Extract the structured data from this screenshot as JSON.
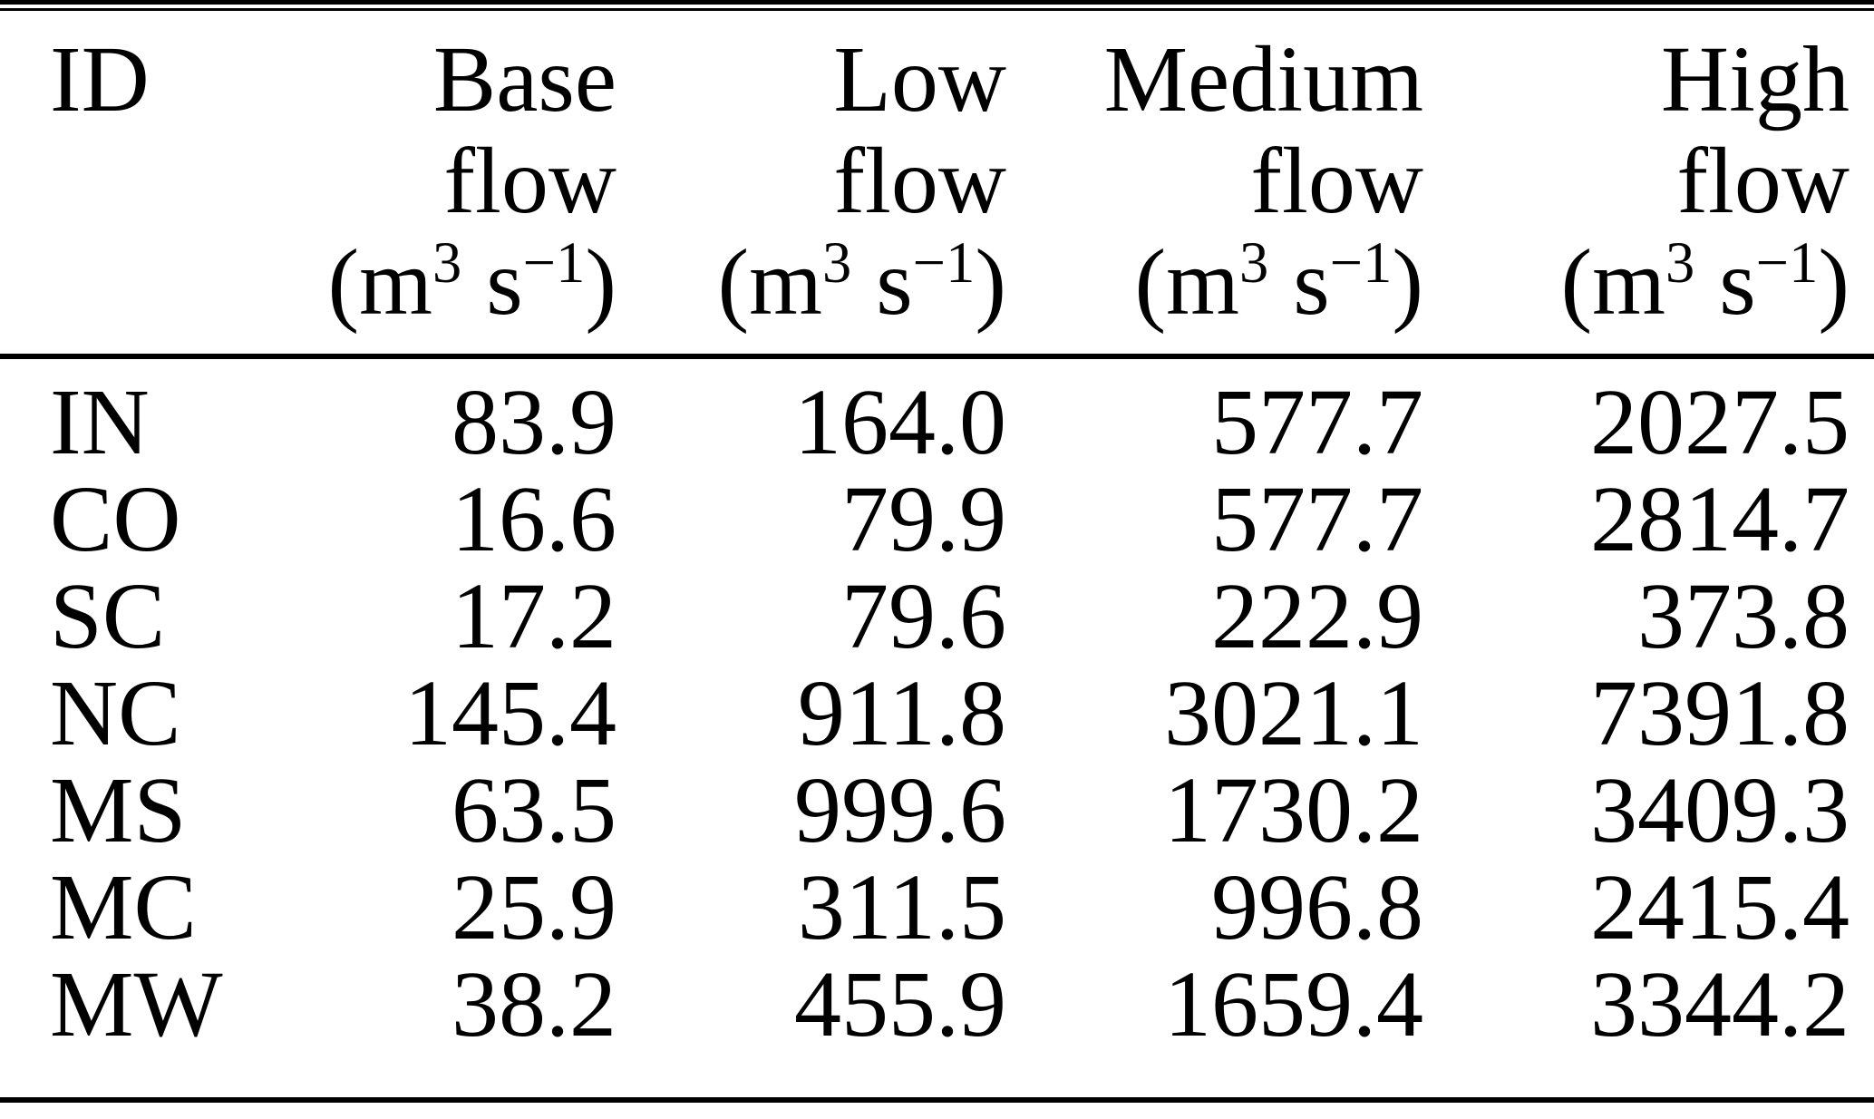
{
  "table": {
    "header": {
      "id_label": "ID",
      "columns": [
        {
          "name": "Base",
          "flow": "flow"
        },
        {
          "name": "Low",
          "flow": "flow"
        },
        {
          "name": "Medium",
          "flow": "flow"
        },
        {
          "name": "High",
          "flow": "flow"
        }
      ],
      "unit": {
        "prefix": "(m",
        "m_exponent": "3",
        "seconds": "s",
        "s_exponent": "−1",
        "suffix": ")"
      }
    },
    "rows": [
      {
        "id": "IN",
        "values": [
          "83.9",
          "164.0",
          "577.7",
          "2027.5"
        ]
      },
      {
        "id": "CO",
        "values": [
          "16.6",
          "79.9",
          "577.7",
          "2814.7"
        ]
      },
      {
        "id": "SC",
        "values": [
          "17.2",
          "79.6",
          "222.9",
          "373.8"
        ]
      },
      {
        "id": "NC",
        "values": [
          "145.4",
          "911.8",
          "3021.1",
          "7391.8"
        ]
      },
      {
        "id": "MS",
        "values": [
          "63.5",
          "999.6",
          "1730.2",
          "3409.3"
        ]
      },
      {
        "id": "MC",
        "values": [
          "25.9",
          "311.5",
          "996.8",
          "2415.4"
        ]
      },
      {
        "id": "MW",
        "values": [
          "38.2",
          "455.9",
          "1659.4",
          "3344.2"
        ]
      }
    ]
  },
  "chart_data": {
    "type": "table",
    "columns": [
      "ID",
      "Base flow (m3 s-1)",
      "Low flow (m3 s-1)",
      "Medium flow (m3 s-1)",
      "High flow (m3 s-1)"
    ],
    "rows": [
      [
        "IN",
        83.9,
        164.0,
        577.7,
        2027.5
      ],
      [
        "CO",
        16.6,
        79.9,
        577.7,
        2814.7
      ],
      [
        "SC",
        17.2,
        79.6,
        222.9,
        373.8
      ],
      [
        "NC",
        145.4,
        911.8,
        3021.1,
        7391.8
      ],
      [
        "MS",
        63.5,
        999.6,
        1730.2,
        3409.3
      ],
      [
        "MC",
        25.9,
        311.5,
        996.8,
        2415.4
      ],
      [
        "MW",
        38.2,
        455.9,
        1659.4,
        3344.2
      ]
    ]
  }
}
